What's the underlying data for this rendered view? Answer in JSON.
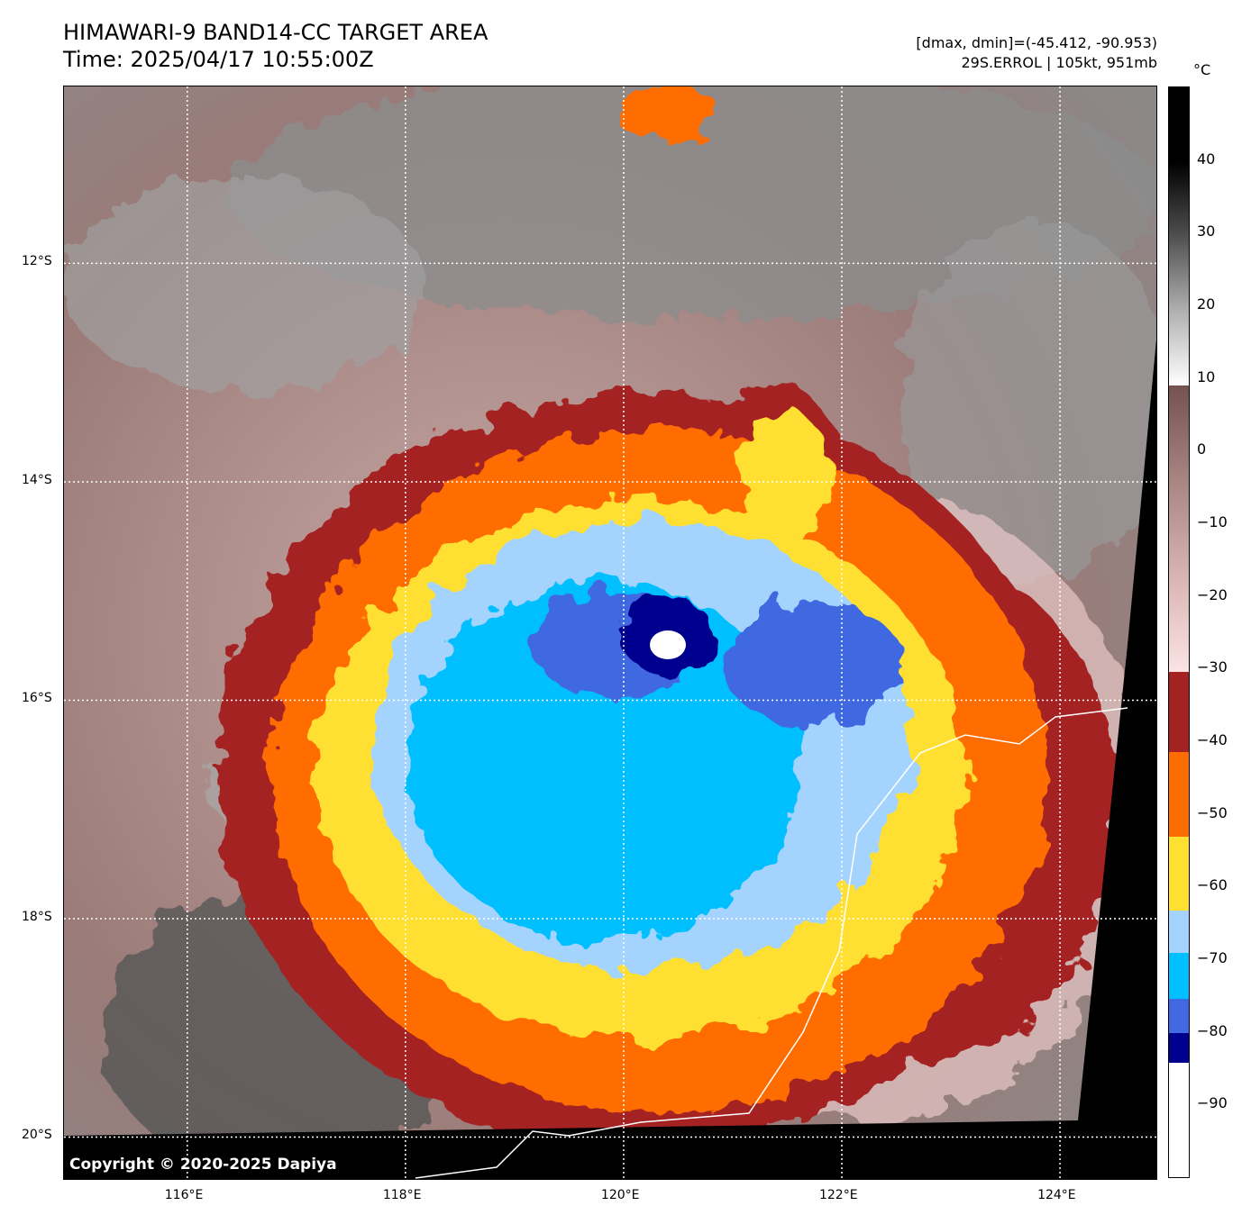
{
  "header": {
    "title": "HIMAWARI-9 BAND14-CC TARGET AREA",
    "time": "Time: 2025/04/17 10:55:00Z",
    "range": "[dmax, dmin]=(-45.412, -90.953)",
    "storm": "29S.ERROL | 105kt, 951mb"
  },
  "map": {
    "lat_labels": [
      "12°S",
      "14°S",
      "16°S",
      "18°S",
      "20°S"
    ],
    "lon_labels": [
      "116°E",
      "118°E",
      "120°E",
      "122°E",
      "124°E"
    ],
    "lat_values": [
      -12,
      -14,
      -16,
      -18,
      -20
    ],
    "lon_values": [
      116,
      118,
      120,
      122,
      124
    ],
    "extent": {
      "lon_min": 114.87,
      "lon_max": 124.9,
      "lat_min": -20.4,
      "lat_max": -10.38
    },
    "copyright": "Copyright © 2020-2025 Dapiya"
  },
  "colorbar": {
    "unit": "°C",
    "min": -100,
    "max": 50,
    "ticks": [
      "40",
      "30",
      "20",
      "10",
      "0",
      "−10",
      "−20",
      "−30",
      "−40",
      "−50",
      "−60",
      "−70",
      "−80",
      "−90"
    ],
    "tick_values": [
      40,
      30,
      20,
      10,
      0,
      -10,
      -20,
      -30,
      -40,
      -50,
      -60,
      -70,
      -80,
      -90
    ],
    "segments": [
      {
        "from": -100,
        "to": -84.3,
        "color": "#ffffff"
      },
      {
        "from": -84.3,
        "to": -80.2,
        "color": "#00008f"
      },
      {
        "from": -80.2,
        "to": -75.4,
        "color": "#4169e1"
      },
      {
        "from": -75.4,
        "to": -69.1,
        "color": "#00bfff"
      },
      {
        "from": -69.1,
        "to": -63.3,
        "color": "#a4d3fe"
      },
      {
        "from": -63.3,
        "to": -53.2,
        "color": "#ffe030"
      },
      {
        "from": -53.2,
        "to": -41.5,
        "color": "#ff6d00"
      },
      {
        "from": -41.5,
        "to": -30.4,
        "color": "#a52222"
      }
    ],
    "gradients": [
      {
        "from": -30.4,
        "to": 9,
        "stops": [
          "#fbe4e4",
          "#d8b4b2",
          "#a88682",
          "#73524f"
        ]
      },
      {
        "from": 9,
        "to": 50,
        "stops": [
          "#ffffff",
          "#b0b0b0",
          "#505050",
          "#000000",
          "#000000"
        ]
      }
    ]
  }
}
